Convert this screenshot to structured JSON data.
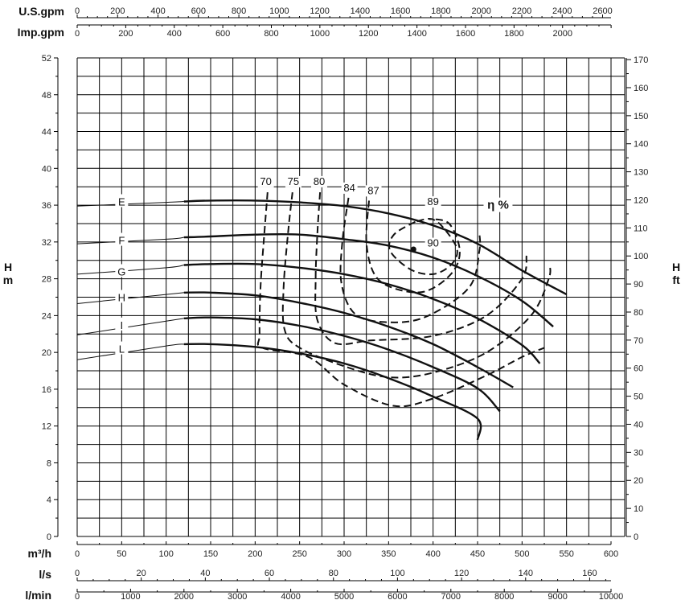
{
  "chart_data": {
    "type": "line",
    "title": "",
    "x_axes": {
      "m3h": {
        "label": "m³/h",
        "range": [
          0,
          600
        ],
        "ticks": [
          0,
          50,
          100,
          150,
          200,
          250,
          300,
          350,
          400,
          450,
          500,
          550,
          600
        ]
      },
      "ls": {
        "label": "l/s",
        "range": [
          0,
          166.67
        ],
        "ticks": [
          0,
          20,
          40,
          60,
          80,
          100,
          120,
          140,
          160
        ]
      },
      "lmin": {
        "label": "l/min",
        "range": [
          0,
          10000
        ],
        "ticks": [
          0,
          1000,
          2000,
          3000,
          4000,
          5000,
          6000,
          7000,
          8000,
          9000,
          10000
        ]
      },
      "usgpm": {
        "label": "U.S.gpm",
        "range": [
          0,
          2642
        ],
        "ticks": [
          0,
          200,
          400,
          600,
          800,
          1000,
          1200,
          1400,
          1600,
          1800,
          2000,
          2200,
          2400,
          2600
        ]
      },
      "impgpm": {
        "label": "Imp.gpm",
        "range": [
          0,
          2200
        ],
        "ticks": [
          0,
          200,
          400,
          600,
          800,
          1000,
          1200,
          1400,
          1600,
          1800,
          2000
        ]
      }
    },
    "y_axes": {
      "left": {
        "label_top": "H",
        "label_bottom": "m",
        "range": [
          0,
          52
        ],
        "ticks": [
          0,
          4,
          8,
          12,
          16,
          20,
          24,
          28,
          32,
          36,
          40,
          44,
          48,
          52
        ]
      },
      "right": {
        "label_top": "H",
        "label_bottom": "ft",
        "range": [
          0,
          170.6
        ],
        "ticks": [
          0,
          10,
          20,
          30,
          40,
          50,
          60,
          70,
          80,
          90,
          100,
          110,
          120,
          130,
          140,
          150,
          160,
          170
        ]
      }
    },
    "grid": true,
    "series": [
      {
        "name": "E",
        "label_at": [
          50,
          36.4
        ],
        "thin": [
          [
            0,
            35.9
          ],
          [
            100,
            36.3
          ],
          [
            120,
            36.4
          ]
        ],
        "values": [
          [
            120,
            36.4
          ],
          [
            150,
            36.5
          ],
          [
            200,
            36.5
          ],
          [
            250,
            36.3
          ],
          [
            300,
            35.9
          ],
          [
            350,
            35.1
          ],
          [
            400,
            33.8
          ],
          [
            450,
            31.8
          ],
          [
            500,
            28.9
          ],
          [
            550,
            26.3
          ]
        ]
      },
      {
        "name": "F",
        "label_at": [
          50,
          32.2
        ],
        "thin": [
          [
            0,
            31.8
          ],
          [
            100,
            32.3
          ],
          [
            120,
            32.5
          ]
        ],
        "values": [
          [
            120,
            32.5
          ],
          [
            150,
            32.6
          ],
          [
            200,
            32.8
          ],
          [
            250,
            32.8
          ],
          [
            300,
            32.3
          ],
          [
            350,
            31.6
          ],
          [
            400,
            30.3
          ],
          [
            450,
            28.3
          ],
          [
            500,
            25.6
          ],
          [
            535,
            22.8
          ]
        ]
      },
      {
        "name": "G",
        "label_at": [
          50,
          28.8
        ],
        "thin": [
          [
            0,
            28.5
          ],
          [
            100,
            29.2
          ],
          [
            120,
            29.5
          ]
        ],
        "values": [
          [
            120,
            29.5
          ],
          [
            150,
            29.6
          ],
          [
            200,
            29.6
          ],
          [
            250,
            29.2
          ],
          [
            300,
            28.5
          ],
          [
            350,
            27.4
          ],
          [
            400,
            25.8
          ],
          [
            450,
            23.7
          ],
          [
            500,
            20.8
          ],
          [
            520,
            18.8
          ]
        ]
      },
      {
        "name": "H",
        "label_at": [
          50,
          26.0
        ],
        "thin": [
          [
            0,
            25.3
          ],
          [
            100,
            26.3
          ],
          [
            120,
            26.5
          ]
        ],
        "values": [
          [
            120,
            26.5
          ],
          [
            150,
            26.5
          ],
          [
            200,
            26.2
          ],
          [
            250,
            25.4
          ],
          [
            300,
            24.3
          ],
          [
            350,
            22.8
          ],
          [
            400,
            20.9
          ],
          [
            450,
            18.4
          ],
          [
            490,
            16.2
          ]
        ]
      },
      {
        "name": "I",
        "label_at": [
          50,
          23.0
        ],
        "thin": [
          [
            0,
            21.9
          ],
          [
            100,
            23.4
          ],
          [
            120,
            23.7
          ]
        ],
        "values": [
          [
            120,
            23.7
          ],
          [
            150,
            23.8
          ],
          [
            200,
            23.6
          ],
          [
            250,
            22.9
          ],
          [
            300,
            21.8
          ],
          [
            350,
            20.3
          ],
          [
            400,
            18.4
          ],
          [
            450,
            16.1
          ],
          [
            475,
            13.6
          ]
        ]
      },
      {
        "name": "L",
        "label_at": [
          50,
          20.4
        ],
        "thin": [
          [
            0,
            19.2
          ],
          [
            100,
            20.7
          ],
          [
            120,
            20.9
          ]
        ],
        "values": [
          [
            120,
            20.9
          ],
          [
            150,
            20.9
          ],
          [
            200,
            20.6
          ],
          [
            250,
            19.9
          ],
          [
            300,
            18.8
          ],
          [
            350,
            17.2
          ],
          [
            400,
            15.2
          ],
          [
            450,
            12.8
          ],
          [
            450,
            10.5
          ]
        ]
      }
    ],
    "efficiency": {
      "title": "η %",
      "curves": [
        {
          "label": "70",
          "label_at": [
            212,
            38.2
          ],
          "points": [
            [
              214,
              37.4
            ],
            [
              210,
              32.5
            ],
            [
              206,
              27
            ],
            [
              205,
              22
            ],
            [
              208,
              20.5
            ],
            [
              260,
              19.5
            ],
            [
              300,
              16.5
            ],
            [
              355,
              14.2
            ],
            [
              400,
              15
            ],
            [
              460,
              17.5
            ],
            [
              500,
              19.5
            ],
            [
              525,
              20.5
            ]
          ]
        },
        {
          "label": "75",
          "label_at": [
            243,
            38.2
          ],
          "points": [
            [
              242,
              37.4
            ],
            [
              237,
              33
            ],
            [
              232,
              27
            ],
            [
              233,
              22.5
            ],
            [
              250,
              20.5
            ],
            [
              300,
              18.5
            ],
            [
              350,
              17.3
            ],
            [
              400,
              17.8
            ],
            [
              460,
              20
            ],
            [
              510,
              24
            ],
            [
              530,
              28
            ],
            [
              531,
              29.5
            ]
          ]
        },
        {
          "label": "80",
          "label_at": [
            272,
            38.2
          ],
          "points": [
            [
              273,
              37.4
            ],
            [
              270,
              33
            ],
            [
              268,
              28
            ],
            [
              270,
              23.5
            ],
            [
              290,
              21
            ],
            [
              330,
              21.3
            ],
            [
              400,
              21.8
            ],
            [
              460,
              24
            ],
            [
              500,
              28
            ],
            [
              505,
              30.5
            ]
          ]
        },
        {
          "label": "84",
          "label_at": [
            306,
            37.5
          ],
          "points": [
            [
              305,
              36.8
            ],
            [
              298,
              32
            ],
            [
              297,
              27.5
            ],
            [
              312,
              24.2
            ],
            [
              345,
              23.3
            ],
            [
              390,
              23.8
            ],
            [
              440,
              27
            ],
            [
              452,
              31
            ],
            [
              452,
              33
            ]
          ]
        },
        {
          "label": "87",
          "label_at": [
            333,
            37.2
          ],
          "points": [
            [
              328,
              36.5
            ],
            [
              325,
              32
            ],
            [
              334,
              28.5
            ],
            [
              355,
              27
            ],
            [
              390,
              26.6
            ],
            [
              420,
              28.5
            ],
            [
              430,
              31
            ],
            [
              418,
              34
            ],
            [
              395,
              34.5
            ]
          ]
        },
        {
          "label": "89",
          "label_at": [
            400,
            36.0
          ],
          "points": [
            [
              380,
              34.2
            ],
            [
              356,
              32.8
            ],
            [
              352,
              31
            ],
            [
              375,
              29
            ],
            [
              400,
              28.5
            ],
            [
              420,
              29.5
            ],
            [
              427,
              31.2
            ],
            [
              412,
              33.5
            ],
            [
              398,
              34.5
            ],
            [
              380,
              34.2
            ]
          ]
        },
        {
          "label": "90",
          "label_at": [
            400,
            31.5
          ],
          "points": []
        }
      ],
      "best_point": [
        378,
        31.2
      ]
    }
  }
}
